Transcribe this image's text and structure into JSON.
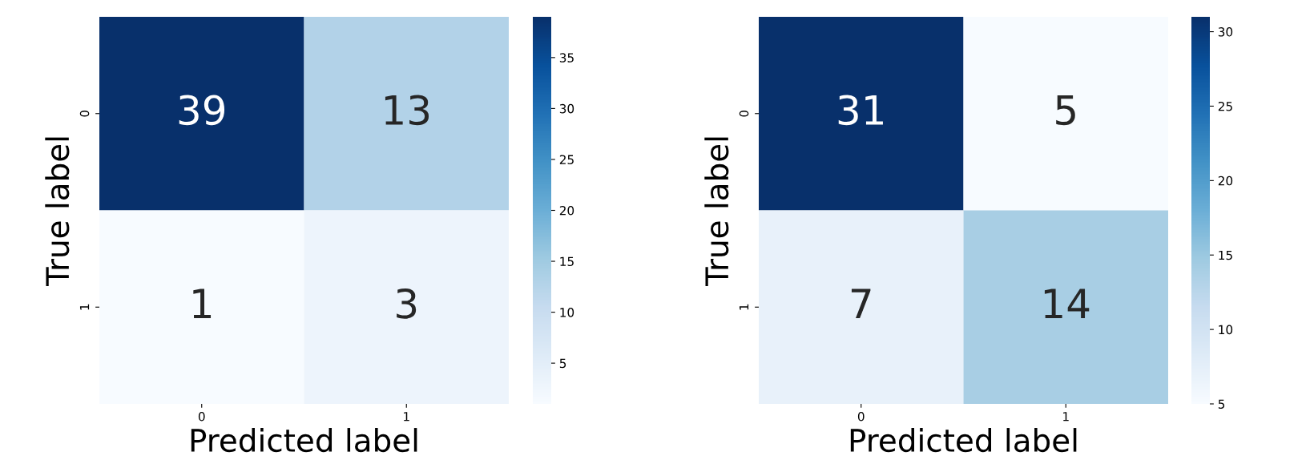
{
  "chart_data": [
    {
      "type": "heatmap",
      "xlabel": "Predicted label",
      "ylabel": "True label",
      "categories": [
        "0",
        "1"
      ],
      "y_categories": [
        "0",
        "1"
      ],
      "cells": [
        [
          39,
          13
        ],
        [
          1,
          3
        ]
      ],
      "data_labels": true,
      "clim": [
        1,
        39
      ],
      "cticks": [
        5,
        10,
        15,
        20,
        25,
        30,
        35
      ]
    },
    {
      "type": "heatmap",
      "xlabel": "Predicted label",
      "ylabel": "True label",
      "categories": [
        "0",
        "1"
      ],
      "y_categories": [
        "0",
        "1"
      ],
      "cells": [
        [
          31,
          5
        ],
        [
          7,
          14
        ]
      ],
      "data_labels": true,
      "clim": [
        5,
        31
      ],
      "cticks": [
        5,
        10,
        15,
        20,
        25,
        30
      ]
    }
  ]
}
